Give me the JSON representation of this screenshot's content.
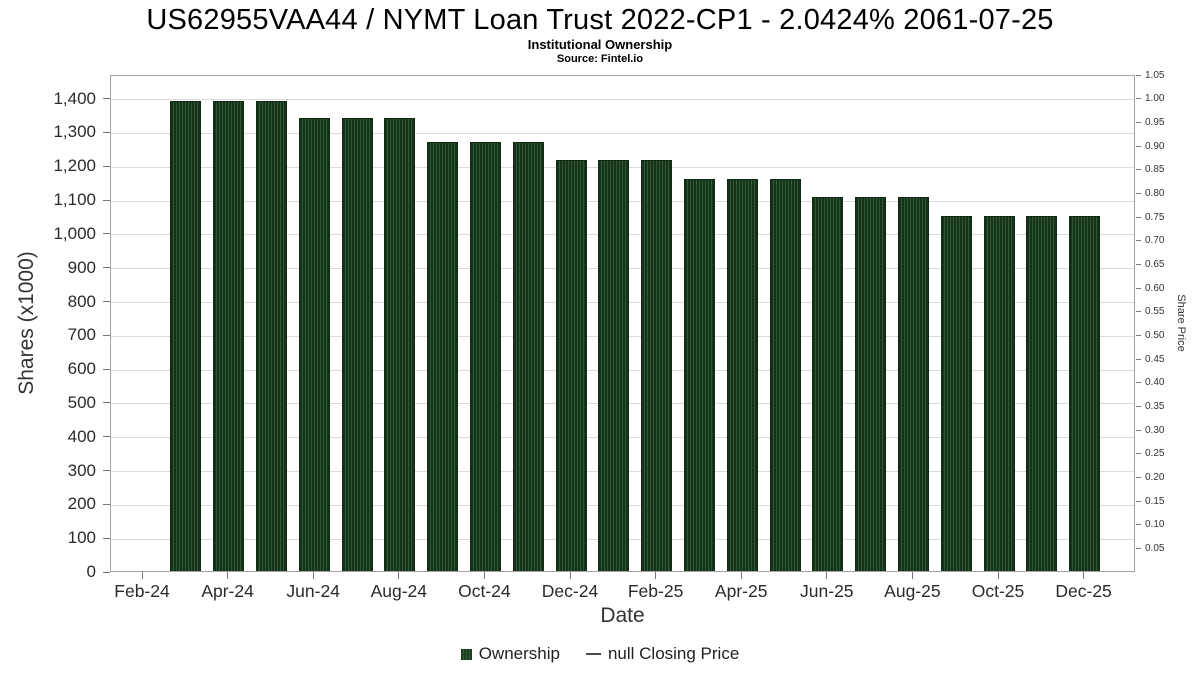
{
  "header": {
    "title": "US62955VAA44 / NYMT Loan Trust 2022-CP1 - 2.0424% 2061-07-25",
    "subtitle": "Institutional Ownership",
    "source": "Source: Fintel.io"
  },
  "chart_data": {
    "type": "bar",
    "title": "US62955VAA44 / NYMT Loan Trust 2022-CP1 - 2.0424% 2061-07-25",
    "subtitle": "Institutional Ownership",
    "source": "Source: Fintel.io",
    "xlabel": "Date",
    "ylabel_left": "Shares (x1000)",
    "ylabel_right": "Share Price",
    "categories": [
      "Mar-24",
      "Apr-24",
      "May-24",
      "Jun-24",
      "Jul-24",
      "Aug-24",
      "Sep-24",
      "Oct-24",
      "Nov-24",
      "Dec-24",
      "Jan-25",
      "Feb-25",
      "Mar-25",
      "Apr-25",
      "May-25",
      "Jun-25",
      "Jul-25",
      "Aug-25",
      "Sep-25",
      "Oct-25",
      "Nov-25",
      "Dec-25"
    ],
    "series": [
      {
        "name": "Ownership",
        "values": [
          1390,
          1390,
          1390,
          1340,
          1340,
          1340,
          1270,
          1270,
          1270,
          1215,
          1215,
          1215,
          1160,
          1160,
          1160,
          1105,
          1105,
          1105,
          1050,
          1050,
          1050,
          1050
        ],
        "color": "#1c3f20"
      }
    ],
    "x_tick_labels": [
      "Feb-24",
      "Apr-24",
      "Jun-24",
      "Aug-24",
      "Oct-24",
      "Dec-24",
      "Feb-25",
      "Apr-25",
      "Jun-25",
      "Aug-25",
      "Oct-25",
      "Dec-25"
    ],
    "y_left_ticks": [
      "0",
      "100",
      "200",
      "300",
      "400",
      "500",
      "600",
      "700",
      "800",
      "900",
      "1,000",
      "1,100",
      "1,200",
      "1,300",
      "1,400"
    ],
    "y_right_ticks": [
      "0.05",
      "0.10",
      "0.15",
      "0.20",
      "0.25",
      "0.30",
      "0.35",
      "0.40",
      "0.45",
      "0.50",
      "0.55",
      "0.60",
      "0.65",
      "0.70",
      "0.75",
      "0.80",
      "0.85",
      "0.90",
      "0.95",
      "1.00",
      "1.05"
    ],
    "ylim_left": [
      0,
      1470
    ],
    "ylim_right": [
      0,
      1.05
    ],
    "grid": "horizontal",
    "legend_position": "bottom-center",
    "legend": [
      {
        "label": "Ownership",
        "marker": "square",
        "color": "#1c3f20"
      },
      {
        "label": "null Closing Price",
        "marker": "line",
        "color": "#4a4a4a"
      }
    ]
  },
  "colors": {
    "bar_fill": "#1c3f20",
    "bar_stripe": "#2e5a33",
    "bar_border": "#0f2913",
    "grid_line": "#dadada",
    "axis_line": "#a3a3a3",
    "tick_text": "#2b2b2b",
    "title_text": "#000000"
  }
}
